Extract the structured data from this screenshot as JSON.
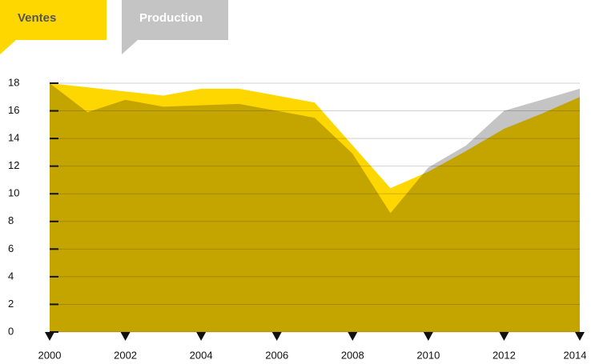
{
  "chart_data": {
    "type": "area",
    "x": [
      2000,
      2001,
      2002,
      2003,
      2004,
      2005,
      2006,
      2007,
      2008,
      2009,
      2010,
      2011,
      2012,
      2013,
      2014
    ],
    "series": [
      {
        "name": "Ventes",
        "color": "#ffd700",
        "values": [
          18,
          17.7,
          17.4,
          17.1,
          17.6,
          17.6,
          17.1,
          16.6,
          13.5,
          10.4,
          11.6,
          13.1,
          14.7,
          15.8,
          17.0
        ]
      },
      {
        "name": "Production",
        "color": "#c4c4c4",
        "values": [
          18,
          15.9,
          16.8,
          16.3,
          16.4,
          16.5,
          16.0,
          15.5,
          12.9,
          8.6,
          11.9,
          13.5,
          16.0,
          16.8,
          17.6
        ]
      }
    ],
    "xlim": [
      2000,
      2014
    ],
    "xticks": [
      2000,
      2002,
      2004,
      2006,
      2008,
      2010,
      2012,
      2014
    ],
    "ylim": [
      0,
      18
    ],
    "yticks": [
      0,
      2,
      4,
      6,
      8,
      10,
      12,
      14,
      16,
      18
    ],
    "grid": true
  }
}
